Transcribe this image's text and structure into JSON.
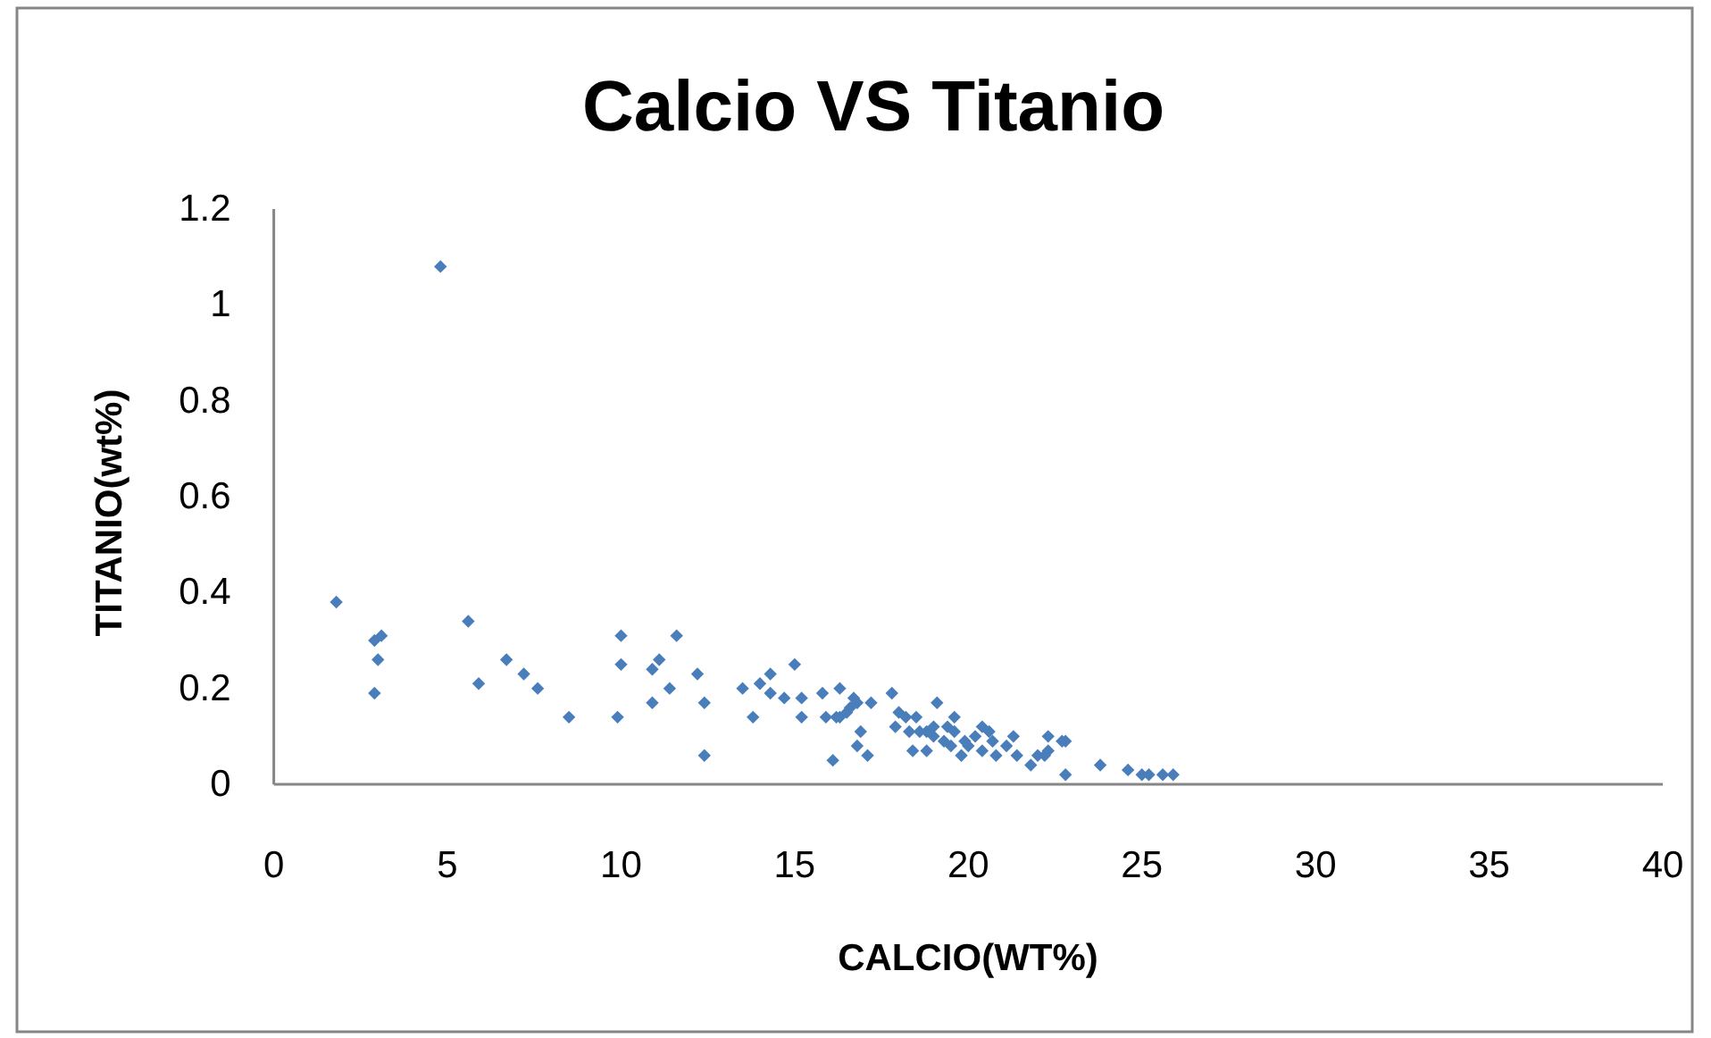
{
  "chart_data": {
    "type": "scatter",
    "title": "Calcio VS Titanio",
    "xlabel": "CALCIO(WT%)",
    "ylabel": "TITANIO(wt%)",
    "x": [
      1.8,
      4.8,
      2.9,
      3.1,
      3.0,
      2.9,
      5.6,
      5.9,
      6.7,
      7.2,
      7.6,
      8.5,
      9.9,
      10.0,
      10.0,
      10.9,
      11.1,
      10.9,
      11.4,
      11.6,
      12.2,
      12.4,
      12.4,
      13.5,
      13.8,
      14.0,
      14.3,
      14.3,
      14.7,
      15.0,
      15.2,
      15.2,
      15.8,
      15.9,
      16.1,
      16.3,
      16.2,
      16.3,
      16.5,
      16.6,
      16.7,
      16.8,
      16.9,
      16.8,
      17.1,
      17.2,
      17.8,
      18.0,
      17.9,
      18.2,
      18.3,
      18.4,
      18.5,
      18.6,
      18.8,
      18.8,
      19.0,
      19.1,
      19.0,
      19.3,
      19.4,
      19.5,
      19.6,
      19.6,
      19.8,
      19.9,
      20.0,
      20.2,
      20.4,
      20.4,
      20.6,
      20.7,
      20.8,
      21.1,
      21.3,
      21.4,
      21.8,
      22.0,
      22.2,
      22.3,
      22.3,
      22.7,
      22.8,
      22.8,
      23.8,
      24.6,
      25.0,
      25.2,
      25.6,
      25.9
    ],
    "values": [
      0.38,
      1.08,
      0.3,
      0.31,
      0.26,
      0.19,
      0.34,
      0.21,
      0.26,
      0.23,
      0.2,
      0.14,
      0.14,
      0.31,
      0.25,
      0.24,
      0.26,
      0.17,
      0.2,
      0.31,
      0.23,
      0.17,
      0.06,
      0.2,
      0.14,
      0.21,
      0.23,
      0.19,
      0.18,
      0.25,
      0.18,
      0.14,
      0.19,
      0.14,
      0.05,
      0.2,
      0.14,
      0.14,
      0.15,
      0.16,
      0.18,
      0.17,
      0.11,
      0.08,
      0.06,
      0.17,
      0.19,
      0.15,
      0.12,
      0.14,
      0.11,
      0.07,
      0.14,
      0.11,
      0.07,
      0.11,
      0.1,
      0.17,
      0.12,
      0.09,
      0.12,
      0.08,
      0.14,
      0.11,
      0.06,
      0.09,
      0.08,
      0.1,
      0.12,
      0.07,
      0.11,
      0.09,
      0.06,
      0.08,
      0.1,
      0.06,
      0.04,
      0.06,
      0.06,
      0.07,
      0.1,
      0.09,
      0.09,
      0.02,
      0.04,
      0.03,
      0.02,
      0.02,
      0.02,
      0.02
    ],
    "color": "#4a7ebb",
    "marker": "diamond",
    "xlim": [
      0,
      40
    ],
    "xticks": [
      0,
      5,
      10,
      15,
      20,
      25,
      30,
      35,
      40
    ],
    "ylim": [
      0,
      1.2
    ],
    "yticks": [
      0,
      0.2,
      0.4,
      0.6,
      0.8,
      1,
      1.2
    ]
  }
}
